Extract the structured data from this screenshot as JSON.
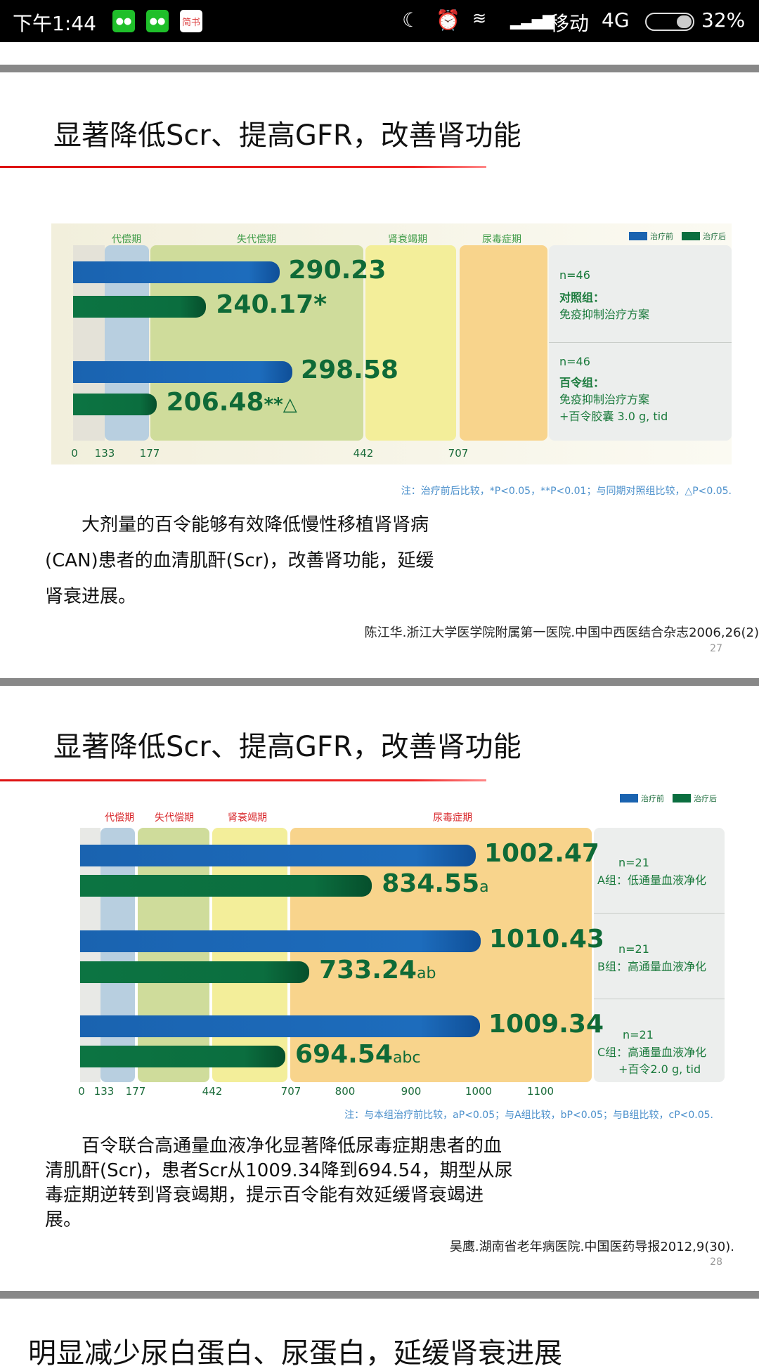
{
  "status_bar": {
    "time": "下午1:44",
    "apps": [
      "wechat-icon",
      "wechat-icon",
      "jianshu-icon"
    ],
    "jianshu_label": "简书",
    "carrier": "移动",
    "network": "4G",
    "battery": "32%",
    "battery_level": 0.32
  },
  "colors": {
    "before": "#1a63b0",
    "after": "#0b6e3f",
    "accent_red": "#dd1111"
  },
  "slides": [
    {
      "title": "显著降低Scr、提高GFR，改善肾功能",
      "body": "大剂量的百令能够有效降低慢性移植肾肾病(CAN)患者的血清肌酐(Scr)，改善肾功能，延缓肾衰进展。",
      "citation": "陈江华.浙江大学医学院附属第一医院.中国中西医结合杂志2006,26(2)",
      "page": "27"
    },
    {
      "title": "显著降低Scr、提高GFR，改善肾功能",
      "body": "百令联合高通量血液净化显著降低尿毒症期患者的血清肌酐(Scr)，患者Scr从1009.34降到694.54，期型从尿毒症期逆转到肾衰竭期，提示百令能有效延缓肾衰竭进展。",
      "citation": "吴鹰.湖南省老年病医院.中国医药导报2012,9(30).",
      "page": "28"
    },
    {
      "title": "明显减少尿白蛋白、尿蛋白，延缓肾衰进展"
    }
  ],
  "chart_data": [
    {
      "type": "bar",
      "orientation": "horizontal",
      "legend": [
        "治疗前",
        "治疗后"
      ],
      "legend_position": "top-right",
      "stages": [
        "代偿期",
        "失代偿期",
        "肾衰竭期",
        "尿毒症期"
      ],
      "ticks": [
        "0",
        "133",
        "177",
        "442",
        "707"
      ],
      "groups": [
        {
          "n": "n=46",
          "name": "对照组：",
          "desc": [
            "免疫抑制治疗方案"
          ],
          "before": 290.23,
          "before_label": "290.23",
          "after": 240.17,
          "after_label": "240.17",
          "after_mark": "*"
        },
        {
          "n": "n=46",
          "name": "百令组：",
          "desc": [
            "免疫抑制治疗方案",
            "+百令胶囊 3.0 g, tid"
          ],
          "before": 298.58,
          "before_label": "298.58",
          "after": 206.48,
          "after_label": "206.48",
          "after_mark": "**△"
        }
      ],
      "note": "注：治疗前后比较，*P<0.05，**P<0.01；与同期对照组比较，△P<0.05."
    },
    {
      "type": "bar",
      "orientation": "horizontal",
      "legend": [
        "治疗前",
        "治疗后"
      ],
      "legend_position": "top-right",
      "stages": [
        "代偿期",
        "失代偿期",
        "肾衰竭期",
        "尿毒症期"
      ],
      "ticks": [
        "0",
        "133",
        "177",
        "442",
        "707",
        "800",
        "900",
        "1000",
        "1100"
      ],
      "groups": [
        {
          "n": "n=21",
          "name": "A组：",
          "desc": [
            "低通量血液净化"
          ],
          "before": 1002.47,
          "before_label": "1002.47",
          "after": 834.55,
          "after_label": "834.55",
          "after_mark": "a"
        },
        {
          "n": "n=21",
          "name": "B组：",
          "desc": [
            "高通量血液净化"
          ],
          "before": 1010.43,
          "before_label": "1010.43",
          "after": 733.24,
          "after_label": "733.24",
          "after_mark": "ab"
        },
        {
          "n": "n=21",
          "name": "C组：",
          "desc": [
            "高通量血液净化",
            "+百令2.0 g, tid"
          ],
          "before": 1009.34,
          "before_label": "1009.34",
          "after": 694.54,
          "after_label": "694.54",
          "after_mark": "abc"
        }
      ],
      "note": "注：与本组治疗前比较，aP<0.05；与A组比较，bP<0.05；与B组比较，cP<0.05."
    }
  ]
}
